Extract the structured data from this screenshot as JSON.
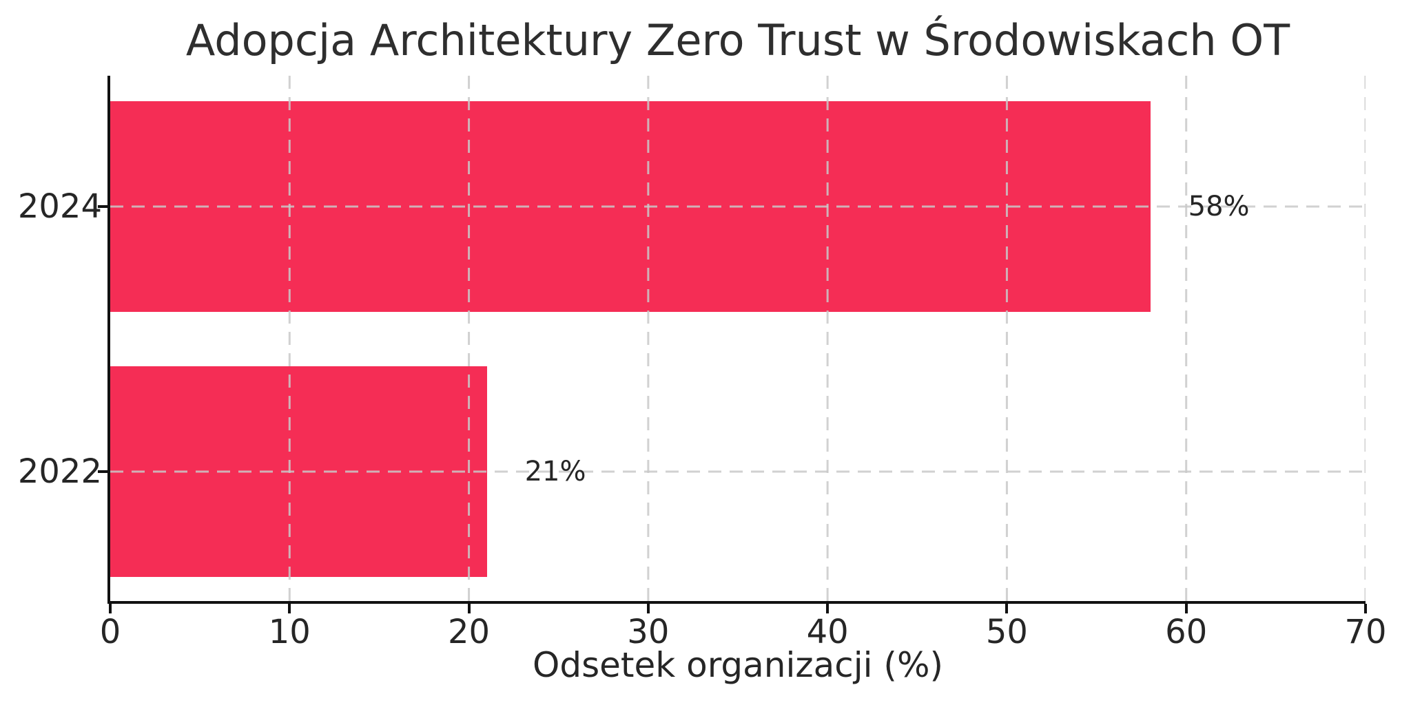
{
  "chart_data": {
    "type": "bar",
    "orientation": "horizontal",
    "title": "Adopcja Architektury Zero Trust w Środowiskach OT",
    "xlabel": "Odsetek organizacji (%)",
    "ylabel": "",
    "categories": [
      "2024",
      "2022"
    ],
    "values": [
      58,
      21
    ],
    "value_labels": [
      "58%",
      "21%"
    ],
    "xlim": [
      0,
      70
    ],
    "xticks": [
      0,
      10,
      20,
      30,
      40,
      50,
      60,
      70
    ],
    "grid": "dashed vertical and horizontal gridlines, drawn over bars",
    "legend": "none"
  },
  "colors": {
    "bar": "#F52D55",
    "grid": "#c9c9c9",
    "text": "#262626",
    "title_text": "#2e2e2e",
    "spine": "#111111",
    "background": "#ffffff"
  }
}
